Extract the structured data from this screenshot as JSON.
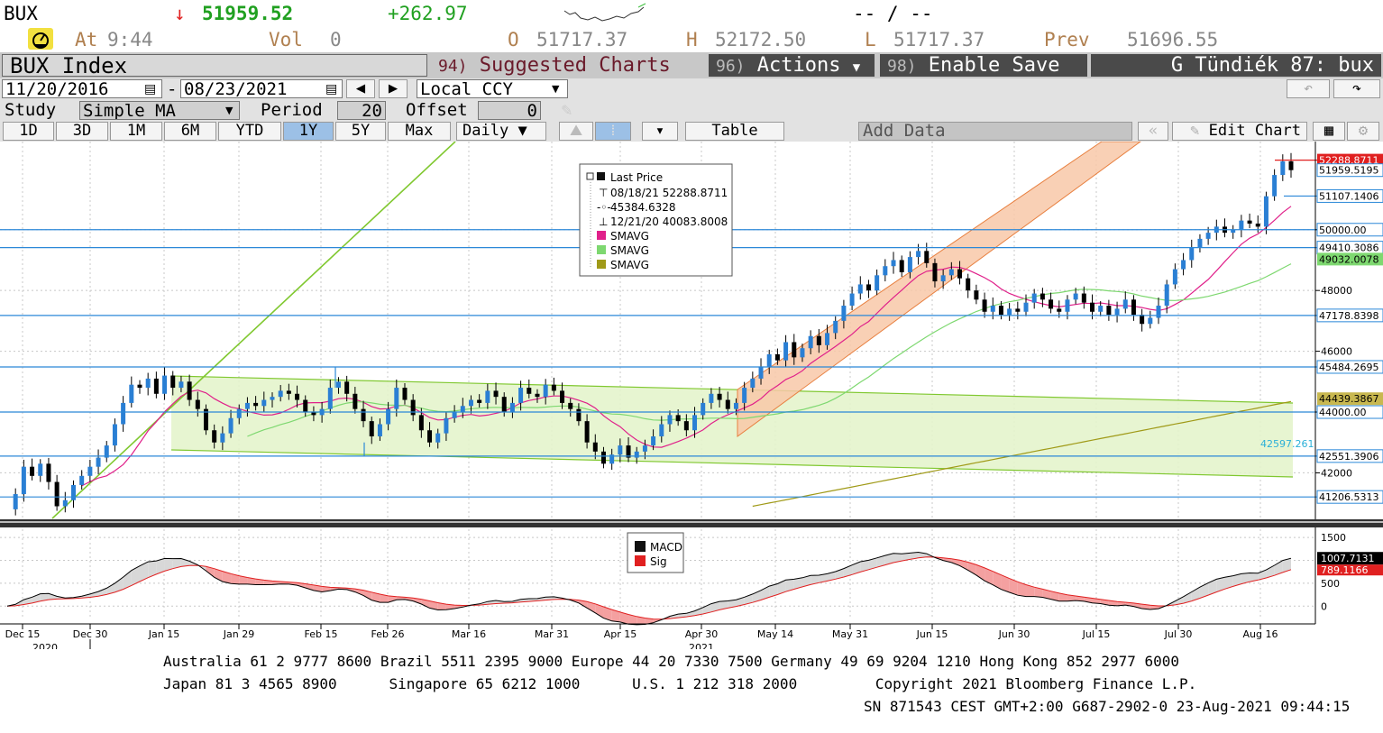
{
  "header": {
    "ticker": "BUX",
    "arrow": "↓",
    "last": "51959.52",
    "change": "+262.97",
    "range_dash": "-- / --",
    "at_label": "At",
    "time": "9:44",
    "vol_label": "Vol",
    "vol": "0",
    "open_label": "O",
    "open": "51717.37",
    "high_label": "H",
    "high": "52172.50",
    "low_label": "L",
    "low": "51717.37",
    "prev_label": "Prev",
    "prev": "51696.55"
  },
  "menu": {
    "security": "BUX Index",
    "suggested_num": "94)",
    "suggested": "Suggested Charts",
    "actions_num": "96)",
    "actions": "Actions",
    "enable_num": "98)",
    "enable": "Enable Save",
    "user": "G Tündiék 87: bux"
  },
  "controls": {
    "start_date": "11/20/2016",
    "end_date": "08/23/2021",
    "currency": "Local CCY",
    "study_label": "Study",
    "study": "Simple MA",
    "period_label": "Period",
    "period": "20",
    "offset_label": "Offset",
    "offset": "0",
    "ranges": [
      "1D",
      "3D",
      "1M",
      "6M",
      "YTD",
      "1Y",
      "5Y",
      "Max"
    ],
    "selected_range": "1Y",
    "frequency": "Daily",
    "table": "Table",
    "add_data": "Add Data",
    "edit_chart": "Edit Chart"
  },
  "legend": {
    "title": "Last Price",
    "high_line": "08/18/21 52288.8711",
    "avg_line": "45384.6328",
    "low_line": "12/21/20 40083.8008",
    "sma1": "SMAVG",
    "sma2": "SMAVG",
    "sma3": "SMAVG",
    "macd": "MACD",
    "sig": "Sig"
  },
  "colors": {
    "up": "#2a7fd4",
    "sma_short": "#e0208a",
    "sma_mid": "#7ed870",
    "sma_long": "#a09a18",
    "channel_fill": "#f8c8a8",
    "rect_fill": "#e4f4cc",
    "hline": "#2b88d8",
    "green_line": "#80c830"
  },
  "chart_data": {
    "type": "candlestick",
    "y_axis": {
      "ticks": [
        42000,
        44000,
        46000,
        48000,
        50000
      ],
      "ylim": [
        40500,
        52900
      ]
    },
    "price_labels": [
      {
        "value": 52288.8711,
        "label": "52288.8711",
        "color": "#e02020"
      },
      {
        "value": 51959.5195,
        "label": "51959.5195",
        "color": "#ffffff"
      },
      {
        "value": 51107.1406,
        "label": "51107.1406",
        "color": "#ffffff"
      },
      {
        "value": 50000.0,
        "label": "50000.00",
        "color": "#ffffff"
      },
      {
        "value": 49410.3086,
        "label": "49410.3086",
        "color": "#ffffff"
      },
      {
        "value": 49032.0078,
        "label": "49032.0078",
        "color": "#7ed870"
      },
      {
        "value": 47178.8398,
        "label": "47178.8398",
        "color": "#ffffff"
      },
      {
        "value": 45484.2695,
        "label": "45484.2695",
        "color": "#ffffff"
      },
      {
        "value": 44439.3867,
        "label": "44439.3867",
        "color": "#c8b850"
      },
      {
        "value": 44000.0,
        "label": "44000.00",
        "color": "#ffffff"
      },
      {
        "value": 42551.3906,
        "label": "42551.3906",
        "color": "#ffffff"
      },
      {
        "value": 41206.5313,
        "label": "41206.5313",
        "color": "#ffffff"
      }
    ],
    "rect_label": "42597.261",
    "horizontal_lines": [
      50000.0,
      49410.3086,
      47178.8398,
      45484.2695,
      44000.0,
      42551.3906,
      41206.5313
    ],
    "x_labels": [
      "Dec 15",
      "Dec 30",
      "Jan 15",
      "Jan 29",
      "Feb 15",
      "Feb 26",
      "Mar 16",
      "Mar 31",
      "Apr 15",
      "Apr 30",
      "May 14",
      "May 31",
      "Jun 15",
      "Jun 30",
      "Jul 15",
      "Jul 30",
      "Aug 16"
    ],
    "year_labels": [
      "2020",
      "2021"
    ],
    "closes": [
      40800,
      41300,
      42200,
      41900,
      42300,
      41700,
      40900,
      41100,
      41600,
      41900,
      42200,
      42500,
      42900,
      43600,
      44300,
      44900,
      44800,
      45100,
      44600,
      45200,
      44800,
      45000,
      44400,
      44100,
      43400,
      43000,
      43300,
      43800,
      44100,
      44300,
      44200,
      44400,
      44500,
      44700,
      44600,
      44400,
      44000,
      43900,
      44100,
      44800,
      45000,
      44600,
      44100,
      43700,
      43200,
      43600,
      44100,
      44800,
      44400,
      43900,
      43400,
      43000,
      43300,
      43800,
      44000,
      44200,
      44400,
      44300,
      44700,
      44500,
      44000,
      44300,
      44800,
      44600,
      44500,
      44900,
      44700,
      44300,
      44100,
      43700,
      43000,
      42700,
      42300,
      42600,
      42900,
      42500,
      42700,
      42900,
      43200,
      43600,
      43900,
      43700,
      43400,
      43900,
      44300,
      44600,
      44400,
      44100,
      44300,
      44800,
      45100,
      45500,
      45900,
      45700,
      46300,
      45800,
      46100,
      46500,
      46200,
      46600,
      47000,
      47500,
      47900,
      48200,
      48000,
      48500,
      48800,
      49000,
      48600,
      49100,
      49300,
      48900,
      48300,
      48500,
      48700,
      48400,
      48000,
      47700,
      47300,
      47500,
      47200,
      47400,
      47300,
      47600,
      47900,
      47700,
      47400,
      47300,
      47700,
      47900,
      47600,
      47300,
      47500,
      47200,
      47400,
      47700,
      47200,
      46900,
      47100,
      47500,
      48200,
      48700,
      49000,
      49400,
      49700,
      49900,
      50100,
      49900,
      50000,
      50300,
      50200,
      50100,
      51100,
      51800,
      52250,
      51959
    ]
  }
}
